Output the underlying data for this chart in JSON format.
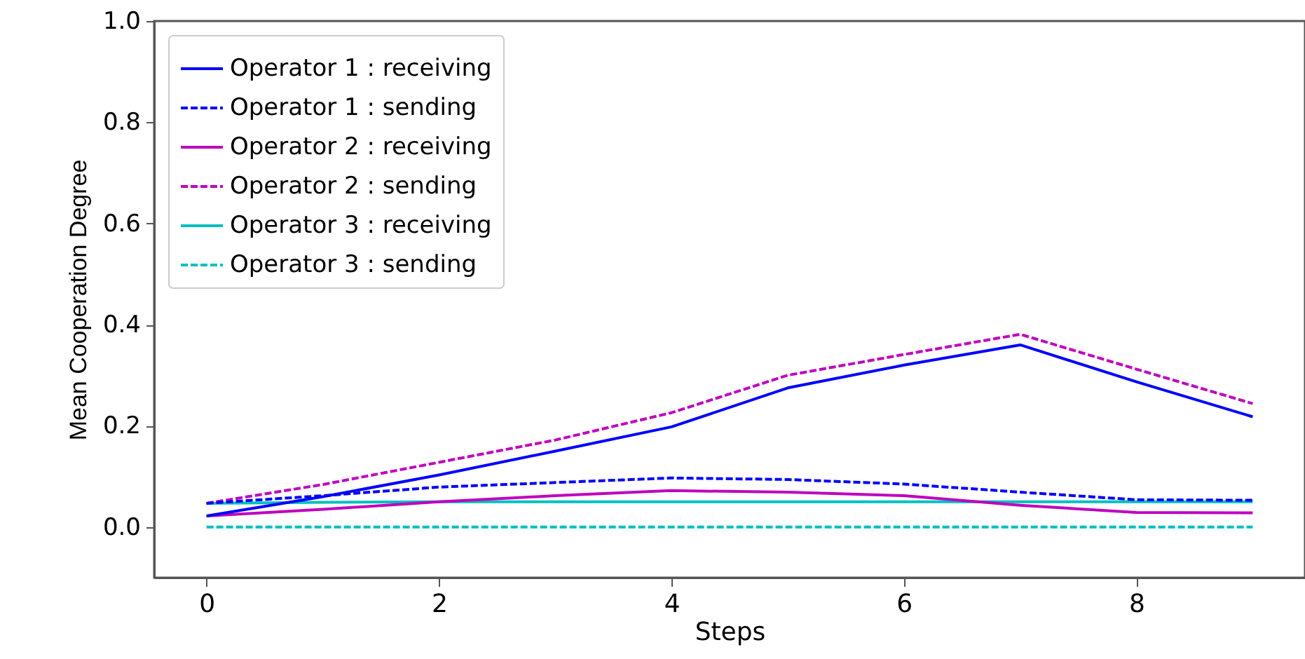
{
  "chart_data": {
    "type": "line",
    "xlabel": "Steps",
    "ylabel": "Mean Cooperation Degree",
    "x": [
      0,
      1,
      2,
      3,
      4,
      5,
      6,
      7,
      8,
      9
    ],
    "series": [
      {
        "name": "Operator 1 : receiving",
        "color": "#0000ff",
        "line_style": "solid",
        "values": [
          0.022,
          0.06,
          0.103,
          0.15,
          0.198,
          0.275,
          0.32,
          0.36,
          0.287,
          0.218
        ]
      },
      {
        "name": "Operator 1 : sending",
        "color": "#0000ff",
        "line_style": "dashed",
        "values": [
          0.047,
          0.062,
          0.079,
          0.088,
          0.097,
          0.094,
          0.085,
          0.069,
          0.054,
          0.053
        ]
      },
      {
        "name": "Operator 2 : receiving",
        "color": "#bf00bf",
        "line_style": "solid",
        "values": [
          0.022,
          0.035,
          0.05,
          0.062,
          0.072,
          0.069,
          0.062,
          0.043,
          0.029,
          0.028
        ]
      },
      {
        "name": "Operator 2 : sending",
        "color": "#bf00bf",
        "line_style": "dashed",
        "values": [
          0.047,
          0.084,
          0.128,
          0.172,
          0.226,
          0.3,
          0.341,
          0.381,
          0.312,
          0.244
        ]
      },
      {
        "name": "Operator 3 : receiving",
        "color": "#00bfbf",
        "line_style": "solid",
        "values": [
          0.047,
          0.049,
          0.05,
          0.05,
          0.05,
          0.05,
          0.05,
          0.05,
          0.05,
          0.05
        ]
      },
      {
        "name": "Operator 3 : sending",
        "color": "#00bfbf",
        "line_style": "dashed",
        "values": [
          0,
          0,
          0,
          0,
          0,
          0,
          0,
          0,
          0,
          0
        ]
      }
    ],
    "xlim": [
      -0.45,
      9.45
    ],
    "xticks": [
      0,
      2,
      4,
      6,
      8
    ],
    "ylim": [
      -0.1,
      1.0
    ],
    "yticks": [
      {
        "value": 0,
        "label": "0.0"
      },
      {
        "value": 0.2,
        "label": "0.2"
      },
      {
        "value": 0.4,
        "label": "0.4"
      },
      {
        "value": 0.6,
        "label": "0.6"
      },
      {
        "value": 0.8,
        "label": "0.8"
      },
      {
        "value": 1.0,
        "label": "1.0"
      }
    ],
    "grid": false,
    "legend": "top left",
    "marker": "none"
  }
}
